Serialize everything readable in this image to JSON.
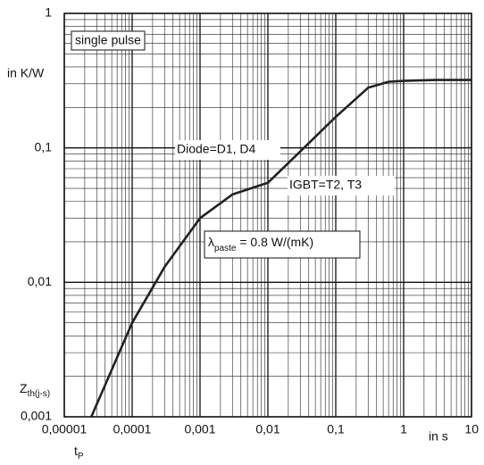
{
  "chart_data": {
    "type": "line",
    "x_unit": "in s",
    "x_label": "t",
    "x_label_sub": "P",
    "y_unit": "in K/W",
    "y_label": "Z",
    "y_label_sub": "th(j-s)",
    "annotations": {
      "pulse": "single pulse",
      "diode": "Diode=D1, D4",
      "igbt": "IGBT=T2, T3",
      "paste": {
        "symbol": "λ",
        "sub": "paste",
        "rest": " = 0.8 W/(mK)"
      }
    },
    "xlog": true,
    "ylog": true,
    "grid": true,
    "minor_grid": true,
    "xlim": [
      1e-05,
      10
    ],
    "ylim": [
      0.001,
      1
    ],
    "xticks": [
      {
        "value": 1e-05,
        "label": "0,00001"
      },
      {
        "value": 0.0001,
        "label": "0,0001"
      },
      {
        "value": 0.001,
        "label": "0,001"
      },
      {
        "value": 0.01,
        "label": "0,01"
      },
      {
        "value": 0.1,
        "label": "0,1"
      },
      1,
      10
    ],
    "yticks": [
      {
        "value": 0.001,
        "label": "0,001"
      },
      {
        "value": 0.01,
        "label": "0,01"
      },
      {
        "value": 0.1,
        "label": "0,1"
      },
      1
    ],
    "series": [
      {
        "color": "#222222",
        "x": [
          2.5e-05,
          0.0001,
          0.0003,
          0.001,
          0.003,
          0.01,
          0.03,
          0.1,
          0.3,
          0.6,
          1,
          3,
          10
        ],
        "values": [
          0.001,
          0.005,
          0.013,
          0.03,
          0.045,
          0.055,
          0.094,
          0.17,
          0.28,
          0.31,
          0.315,
          0.32,
          0.32
        ]
      }
    ]
  }
}
